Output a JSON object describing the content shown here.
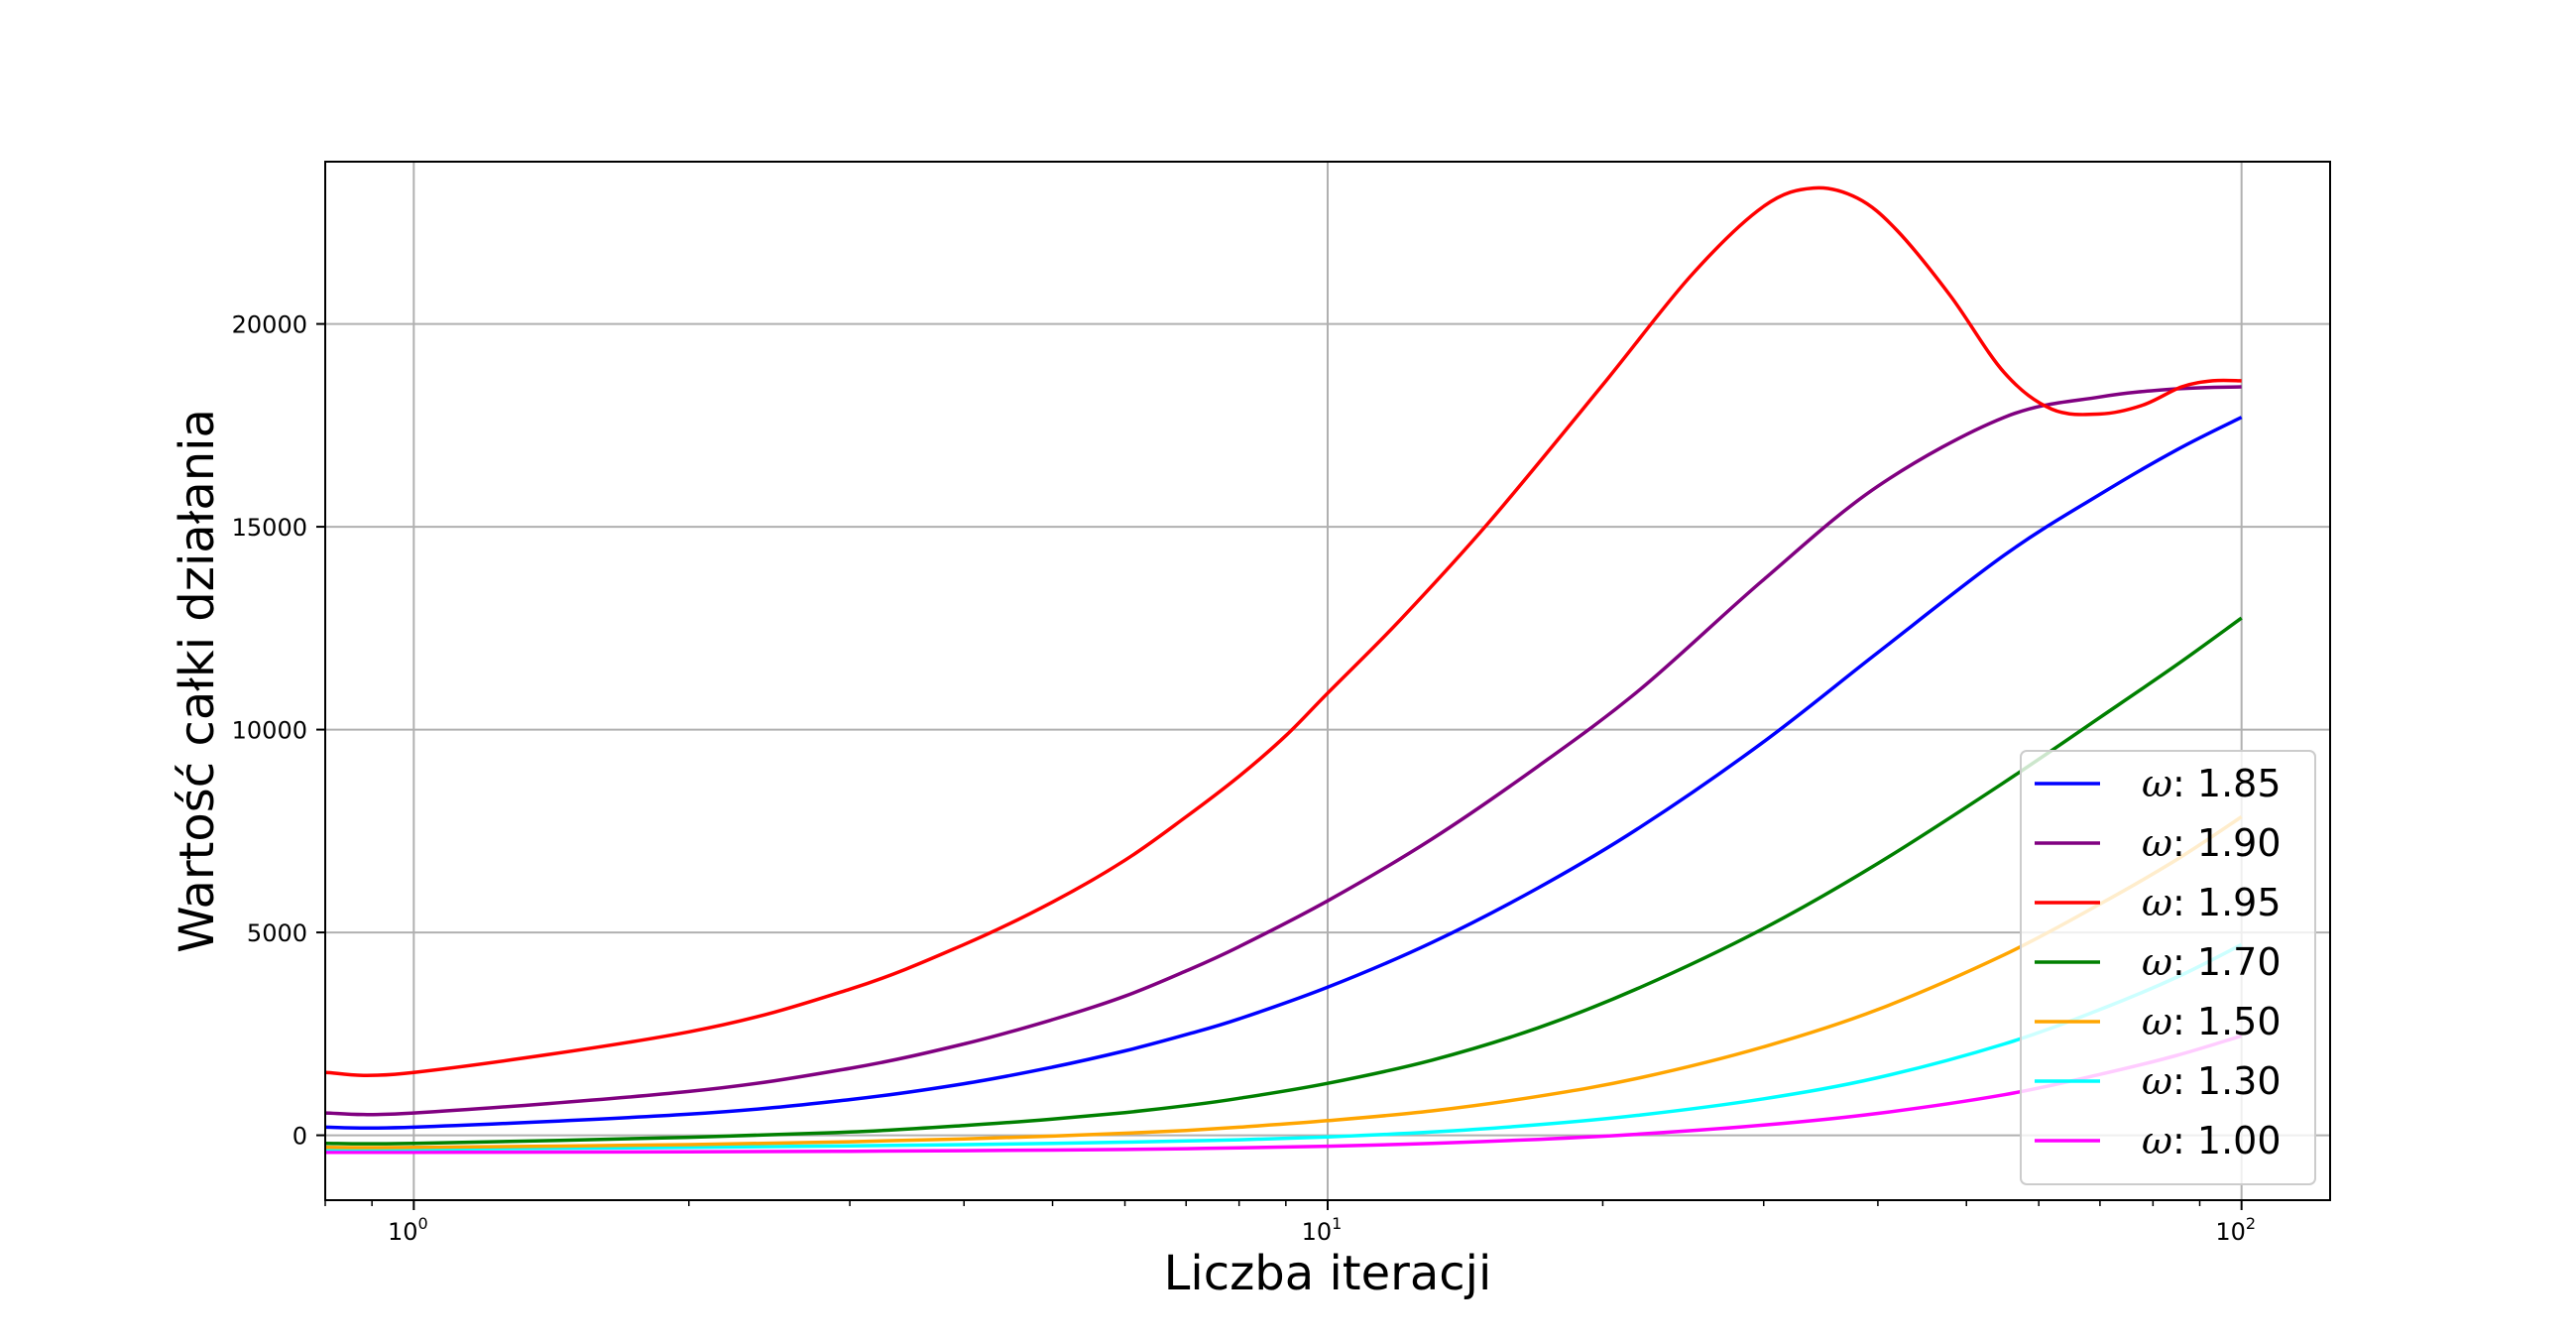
{
  "chart_data": {
    "type": "line",
    "xlabel": "Liczba iteracji",
    "ylabel": "Wartość całki działania",
    "xscale": "log",
    "xlim": [
      0.8,
      125
    ],
    "ylim": [
      -1600,
      24000
    ],
    "grid": true,
    "legend_position": "lower-right",
    "x_ticks": [
      {
        "value": 1,
        "base": "10",
        "exp": "0"
      },
      {
        "value": 10,
        "base": "10",
        "exp": "1"
      },
      {
        "value": 100,
        "base": "10",
        "exp": "2"
      }
    ],
    "y_ticks": [
      {
        "value": 0,
        "label": "0"
      },
      {
        "value": 5000,
        "label": "5000"
      },
      {
        "value": 10000,
        "label": "10000"
      },
      {
        "value": 15000,
        "label": "15000"
      },
      {
        "value": 20000,
        "label": "20000"
      }
    ],
    "series": [
      {
        "name": "1.85",
        "color": "#0000ff",
        "x": [
          0.8,
          1,
          2,
          3,
          4,
          5,
          6,
          7,
          8,
          10,
          13,
          17,
          22,
          30,
          40,
          55,
          70,
          85,
          100
        ],
        "y": [
          200,
          200,
          520,
          880,
          1270,
          1680,
          2080,
          2480,
          2870,
          3650,
          4750,
          6100,
          7600,
          9700,
          11900,
          14300,
          15800,
          16900,
          17700
        ]
      },
      {
        "name": "1.90",
        "color": "#800080",
        "x": [
          0.8,
          1,
          2,
          3,
          4,
          5,
          6,
          7,
          8,
          10,
          13,
          17,
          22,
          30,
          40,
          55,
          70,
          85,
          100
        ],
        "y": [
          550,
          550,
          1080,
          1650,
          2250,
          2850,
          3430,
          4050,
          4650,
          5780,
          7300,
          9100,
          11000,
          13700,
          16000,
          17700,
          18200,
          18400,
          18450
        ]
      },
      {
        "name": "1.95",
        "color": "#ff0000",
        "x": [
          0.8,
          1,
          2,
          3,
          4,
          5,
          6,
          7,
          8,
          9,
          10,
          12,
          15,
          20,
          25,
          30,
          34,
          38,
          42,
          48,
          55,
          62,
          70,
          78,
          86,
          93,
          100
        ],
        "y": [
          1550,
          1550,
          2550,
          3600,
          4700,
          5750,
          6780,
          7850,
          8850,
          9850,
          10900,
          12700,
          15100,
          18500,
          21200,
          22900,
          23350,
          23100,
          22300,
          20700,
          18800,
          17900,
          17780,
          18000,
          18450,
          18600,
          18600
        ]
      },
      {
        "name": "1.70",
        "color": "#008000",
        "x": [
          0.8,
          1,
          2,
          3,
          4,
          5,
          6,
          7,
          8,
          10,
          13,
          17,
          22,
          30,
          40,
          55,
          70,
          85,
          100
        ],
        "y": [
          -200,
          -200,
          -50,
          80,
          240,
          400,
          560,
          730,
          910,
          1280,
          1850,
          2650,
          3650,
          5100,
          6700,
          8700,
          10300,
          11600,
          12750
        ]
      },
      {
        "name": "1.50",
        "color": "#ffa500",
        "x": [
          0.8,
          1,
          2,
          3,
          4,
          5,
          6,
          7,
          8,
          10,
          13,
          17,
          22,
          30,
          40,
          55,
          70,
          85,
          100
        ],
        "y": [
          -300,
          -300,
          -230,
          -160,
          -90,
          -20,
          50,
          120,
          200,
          360,
          600,
          960,
          1420,
          2180,
          3100,
          4450,
          5700,
          6800,
          7850
        ]
      },
      {
        "name": "1.30",
        "color": "#00ffff",
        "x": [
          0.8,
          1,
          2,
          3,
          4,
          5,
          6,
          7,
          8,
          10,
          13,
          17,
          22,
          30,
          40,
          55,
          70,
          85,
          100
        ],
        "y": [
          -340,
          -340,
          -300,
          -260,
          -230,
          -200,
          -170,
          -140,
          -110,
          -40,
          80,
          260,
          500,
          900,
          1420,
          2250,
          3100,
          3900,
          4700
        ]
      },
      {
        "name": "1.00",
        "color": "#ff00ff",
        "x": [
          0.8,
          1,
          2,
          3,
          4,
          5,
          6,
          7,
          8,
          10,
          13,
          17,
          22,
          30,
          40,
          55,
          70,
          85,
          100
        ],
        "y": [
          -420,
          -420,
          -410,
          -395,
          -380,
          -365,
          -350,
          -330,
          -310,
          -270,
          -200,
          -100,
          30,
          250,
          540,
          1000,
          1500,
          1970,
          2450
        ]
      }
    ]
  }
}
